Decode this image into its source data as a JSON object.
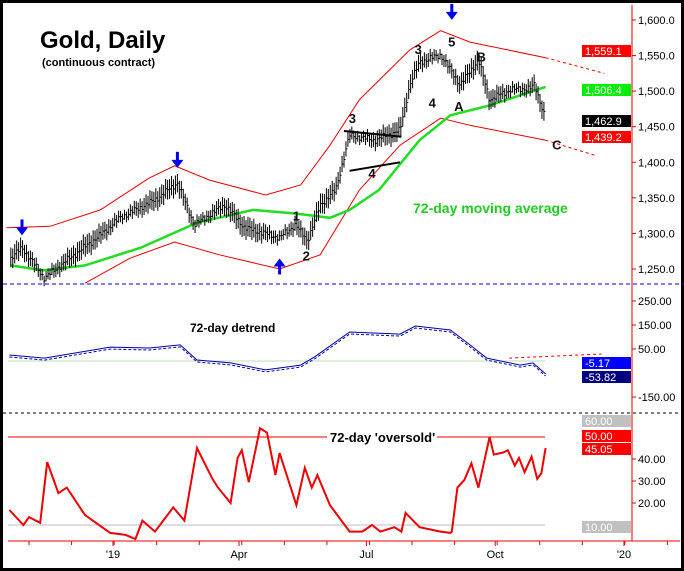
{
  "chart_data": [
    {
      "type": "line",
      "panel": "price",
      "title": "Gold, Daily",
      "subtitle": "(continuous contract)",
      "x_unit": "days since 2019-01-01",
      "ylim": [
        1230,
        1620
      ],
      "yticks": [
        1250,
        1300,
        1350,
        1400,
        1450,
        1500,
        1550,
        1600
      ],
      "ytick_labels": [
        "1,250.0",
        "1,300.0",
        "1,350.0",
        "1,400.0",
        "1,450.0",
        "1,500.0",
        "1,550.0",
        "1,600.0"
      ],
      "price": [
        [
          -73,
          1265
        ],
        [
          -65,
          1280
        ],
        [
          -49,
          1237
        ],
        [
          -31,
          1265
        ],
        [
          -9,
          1298
        ],
        [
          5,
          1322
        ],
        [
          30,
          1347
        ],
        [
          46,
          1371
        ],
        [
          58,
          1312
        ],
        [
          80,
          1340
        ],
        [
          94,
          1308
        ],
        [
          119,
          1294
        ],
        [
          130,
          1312
        ],
        [
          139,
          1290
        ],
        [
          148,
          1340
        ],
        [
          159,
          1361
        ],
        [
          169,
          1438
        ],
        [
          187,
          1431
        ],
        [
          205,
          1445
        ],
        [
          212,
          1509
        ],
        [
          219,
          1541
        ],
        [
          234,
          1551
        ],
        [
          241,
          1530
        ],
        [
          248,
          1509
        ],
        [
          261,
          1544
        ],
        [
          269,
          1488
        ],
        [
          284,
          1502
        ],
        [
          298,
          1504
        ],
        [
          301,
          1509
        ],
        [
          309,
          1462
        ]
      ],
      "moving_average": {
        "name": "72-day moving average",
        "color": "#22dd22",
        "points": [
          [
            -73,
            1255
          ],
          [
            -50,
            1248
          ],
          [
            -20,
            1255
          ],
          [
            20,
            1280
          ],
          [
            60,
            1315
          ],
          [
            100,
            1333
          ],
          [
            130,
            1328
          ],
          [
            155,
            1322
          ],
          [
            169,
            1333
          ],
          [
            190,
            1361
          ],
          [
            219,
            1431
          ],
          [
            241,
            1466
          ],
          [
            269,
            1480
          ],
          [
            309,
            1506
          ]
        ]
      },
      "upper_band": {
        "color": "#ee0000",
        "points": [
          [
            -76,
            1308
          ],
          [
            -45,
            1310
          ],
          [
            -9,
            1333
          ],
          [
            26,
            1378
          ],
          [
            44,
            1395
          ],
          [
            69,
            1375
          ],
          [
            109,
            1354
          ],
          [
            134,
            1368
          ],
          [
            155,
            1424
          ],
          [
            176,
            1488
          ],
          [
            212,
            1558
          ],
          [
            234,
            1585
          ],
          [
            255,
            1569
          ],
          [
            309,
            1547
          ]
        ],
        "projection": [
          [
            309,
            1547
          ],
          [
            351,
            1525
          ]
        ]
      },
      "lower_band": {
        "color": "#ee0000",
        "points": [
          [
            -20,
            1230
          ],
          [
            12,
            1265
          ],
          [
            44,
            1288
          ],
          [
            76,
            1270
          ],
          [
            119,
            1250
          ],
          [
            148,
            1270
          ],
          [
            176,
            1361
          ],
          [
            205,
            1424
          ],
          [
            234,
            1462
          ],
          [
            255,
            1452
          ],
          [
            309,
            1431
          ]
        ],
        "projection": [
          [
            309,
            1431
          ],
          [
            344,
            1410
          ]
        ]
      },
      "price_labels": [
        {
          "text": "1,559.1",
          "bg": "#ff0000",
          "fg": "#ffffff",
          "value": 1559.1
        },
        {
          "text": "1,506.4",
          "bg": "#00ee00",
          "fg": "#ffffff",
          "value": 1506.4
        },
        {
          "text": "1,462.9",
          "bg": "#000000",
          "fg": "#ffffff",
          "value": 1462.9
        },
        {
          "text": "1,439.2",
          "bg": "#ff0000",
          "fg": "#ffffff",
          "value": 1439.2
        }
      ],
      "annotations": {
        "ma_label": "72-day moving average",
        "waves": [
          {
            "text": "1",
            "d": 131,
            "p": 1318
          },
          {
            "text": "2",
            "d": 138,
            "p": 1262
          },
          {
            "text": "3",
            "d": 171,
            "p": 1455
          },
          {
            "text": "4",
            "d": 185,
            "p": 1378
          },
          {
            "text": "3",
            "d": 218,
            "p": 1552
          },
          {
            "text": "4",
            "d": 228,
            "p": 1477
          },
          {
            "text": "5",
            "d": 242,
            "p": 1563
          },
          {
            "text": "A",
            "d": 247,
            "p": 1472
          },
          {
            "text": "B",
            "d": 263,
            "p": 1542
          },
          {
            "text": "C",
            "d": 317,
            "p": 1418
          }
        ],
        "down_arrows": [
          [
            -65,
            1300
          ],
          [
            46,
            1395
          ],
          [
            242,
            1603
          ]
        ],
        "up_arrows": [
          [
            119,
            1262
          ]
        ],
        "triangle": [
          [
            [
              165,
              1444
            ],
            [
              206,
              1436
            ]
          ],
          [
            [
              169,
              1388
            ],
            [
              205,
              1400
            ]
          ]
        ]
      }
    },
    {
      "type": "line",
      "panel": "detrend",
      "title": "72-day detrend",
      "ylim": [
        -170,
        270
      ],
      "yticks": [
        250,
        150,
        50,
        -150
      ],
      "ytick_labels": [
        "250.00",
        "150.00",
        "50.00",
        "-150.00"
      ],
      "values": [
        [
          -74,
          25
        ],
        [
          -49,
          12
        ],
        [
          -2,
          58
        ],
        [
          26,
          54
        ],
        [
          48,
          67
        ],
        [
          60,
          4
        ],
        [
          84,
          -8
        ],
        [
          109,
          -37
        ],
        [
          134,
          -17
        ],
        [
          144,
          17
        ],
        [
          169,
          121
        ],
        [
          205,
          112
        ],
        [
          216,
          146
        ],
        [
          241,
          129
        ],
        [
          255,
          67
        ],
        [
          267,
          12
        ],
        [
          291,
          -17
        ],
        [
          300,
          -8
        ],
        [
          309,
          -54
        ]
      ],
      "projection": [
        [
          283,
          12
        ],
        [
          349,
          29
        ]
      ],
      "labels": [
        {
          "text": "-5.17",
          "bg": "#0000ff",
          "fg": "#ffffff"
        },
        {
          "text": "-53.82",
          "bg": "#000080",
          "fg": "#ffffff"
        }
      ]
    },
    {
      "type": "line",
      "panel": "oversold",
      "title": "72-day 'oversold'",
      "ylim": [
        0,
        65
      ],
      "yticks": [
        20,
        30,
        40
      ],
      "ytick_labels": [
        "20.00",
        "30.00",
        "40.00"
      ],
      "reference_lines": [
        50,
        10
      ],
      "values": [
        [
          -74,
          16.8
        ],
        [
          -64,
          10
        ],
        [
          -60,
          13.6
        ],
        [
          -52,
          11
        ],
        [
          -47,
          38.6
        ],
        [
          -39,
          24.5
        ],
        [
          -33,
          27
        ],
        [
          -20,
          14.5
        ],
        [
          -2,
          6.4
        ],
        [
          9,
          5.5
        ],
        [
          16,
          3.6
        ],
        [
          21,
          12
        ],
        [
          30,
          7
        ],
        [
          43,
          18
        ],
        [
          51,
          12
        ],
        [
          60,
          45
        ],
        [
          71,
          31
        ],
        [
          75,
          27
        ],
        [
          84,
          20
        ],
        [
          89,
          40.5
        ],
        [
          92,
          44
        ],
        [
          97,
          29.5
        ],
        [
          105,
          54
        ],
        [
          110,
          52
        ],
        [
          116,
          32.7
        ],
        [
          119,
          42.7
        ],
        [
          131,
          19
        ],
        [
          137,
          36
        ],
        [
          142,
          27
        ],
        [
          146,
          32.7
        ],
        [
          155,
          19
        ],
        [
          169,
          7
        ],
        [
          178,
          7
        ],
        [
          185,
          10
        ],
        [
          191,
          7
        ],
        [
          201,
          9
        ],
        [
          206,
          7
        ],
        [
          209,
          15.5
        ],
        [
          219,
          9
        ],
        [
          234,
          7
        ],
        [
          241,
          6.4
        ],
        [
          242,
          7
        ],
        [
          246,
          27
        ],
        [
          251,
          30.5
        ],
        [
          256,
          38
        ],
        [
          261,
          27
        ],
        [
          269,
          50
        ],
        [
          272,
          42
        ],
        [
          279,
          43
        ],
        [
          282,
          44
        ],
        [
          287,
          37
        ],
        [
          290,
          40.5
        ],
        [
          294,
          34
        ],
        [
          299,
          41
        ],
        [
          303,
          31
        ],
        [
          306,
          33.6
        ],
        [
          309,
          45
        ]
      ],
      "labels": [
        {
          "text": "60.00",
          "bg": "#c0c0c0",
          "fg": "#ffffff",
          "value": 60
        },
        {
          "text": "50.00",
          "bg": "#ff0000",
          "fg": "#ffffff",
          "value": 50
        },
        {
          "text": "45.05",
          "bg": "#ff0000",
          "fg": "#ffffff",
          "value": 45.05
        },
        {
          "text": "10.00",
          "bg": "#c0c0c0",
          "fg": "#ffffff",
          "value": 10
        }
      ]
    }
  ],
  "x_axis": {
    "ticks": [
      {
        "d": 0,
        "label": "'19"
      },
      {
        "d": 90,
        "label": "Apr"
      },
      {
        "d": 181,
        "label": "Jul"
      },
      {
        "d": 273,
        "label": "Oct"
      },
      {
        "d": 365,
        "label": "'20"
      }
    ]
  }
}
